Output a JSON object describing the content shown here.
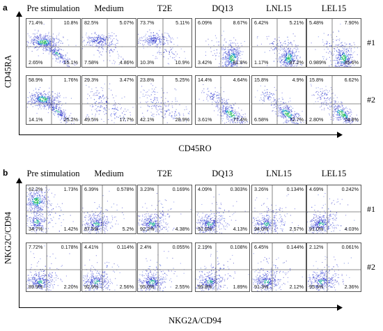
{
  "panels": [
    {
      "letter": "a",
      "columns": [
        "Pre stimulation",
        "Medium",
        "T2E",
        "DQ13",
        "LNL15",
        "LEL15"
      ],
      "y_axis_label": "CD45RA",
      "x_axis_label": "CD45RO",
      "rows": [
        {
          "label": "#1",
          "plots": [
            {
              "tl": "71.4%",
              "tr": "10.8%",
              "bl": "2.65%",
              "br": "15.1%",
              "pattern": "diag"
            },
            {
              "tl": "82.5%",
              "tr": "5.07%",
              "bl": "7.58%",
              "br": "4.86%",
              "pattern": "tl"
            },
            {
              "tl": "73.7%",
              "tr": "5.11%",
              "bl": "10.3%",
              "br": "10.9%",
              "pattern": "tl"
            },
            {
              "tl": "6.09%",
              "tr": "8.67%",
              "bl": "3.42%",
              "br": "81.8%",
              "pattern": "br"
            },
            {
              "tl": "6.42%",
              "tr": "5.21%",
              "bl": "1.17%",
              "br": "87.2%",
              "pattern": "br"
            },
            {
              "tl": "5.48%",
              "tr": "7.90%",
              "bl": "0.989%",
              "br": "85.6%",
              "pattern": "br"
            }
          ]
        },
        {
          "label": "#2",
          "plots": [
            {
              "tl": "58.9%",
              "tr": "1.76%",
              "bl": "14.1%",
              "br": "25.2%",
              "pattern": "diag"
            },
            {
              "tl": "29.3%",
              "tr": "3.47%",
              "bl": "49.5%",
              "br": "17.7%",
              "pattern": "sparse"
            },
            {
              "tl": "23.8%",
              "tr": "5.25%",
              "bl": "42.1%",
              "br": "28.9%",
              "pattern": "sparse"
            },
            {
              "tl": "14.4%",
              "tr": "4.64%",
              "bl": "3.61%",
              "br": "77.4%",
              "pattern": "brdiag"
            },
            {
              "tl": "15.8%",
              "tr": "4.9%",
              "bl": "6.58%",
              "br": "72.7%",
              "pattern": "brdiag"
            },
            {
              "tl": "15.8%",
              "tr": "6.62%",
              "bl": "2.80%",
              "br": "74.8%",
              "pattern": "brdiag"
            }
          ]
        }
      ]
    },
    {
      "letter": "b",
      "columns": [
        "Pre stimulation",
        "Medium",
        "T2E",
        "DQ13",
        "LNL15",
        "LEL15"
      ],
      "y_axis_label": "NKG2C/CD94",
      "x_axis_label": "NKG2A/CD94",
      "rows": [
        {
          "label": "#1",
          "plots": [
            {
              "tl": "62.2%",
              "tr": "1.73%",
              "bl": "34.7%",
              "br": "1.42%",
              "pattern": "left"
            },
            {
              "tl": "6.39%",
              "tr": "0.578%",
              "bl": "87.5%",
              "br": "5.2%",
              "pattern": "bl"
            },
            {
              "tl": "3.23%",
              "tr": "0.169%",
              "bl": "92.2%",
              "br": "4.38%",
              "pattern": "bl"
            },
            {
              "tl": "4.09%",
              "tr": "0.303%",
              "bl": "91.5%",
              "br": "4.13%",
              "pattern": "bl"
            },
            {
              "tl": "3.26%",
              "tr": "0.134%",
              "bl": "94.0%",
              "br": "2.57%",
              "pattern": "bl"
            },
            {
              "tl": "4.69%",
              "tr": "0.242%",
              "bl": "91.0%",
              "br": "4.03%",
              "pattern": "bl"
            }
          ]
        },
        {
          "label": "#2",
          "plots": [
            {
              "tl": "7.72%",
              "tr": "0.178%",
              "bl": "89.9%",
              "br": "2.20%",
              "pattern": "bl"
            },
            {
              "tl": "4.41%",
              "tr": "0.114%",
              "bl": "92.9%",
              "br": "2.56%",
              "pattern": "bl"
            },
            {
              "tl": "2.4%",
              "tr": "0.055%",
              "bl": "95.0%",
              "br": "2.55%",
              "pattern": "bl"
            },
            {
              "tl": "2.19%",
              "tr": "0.108%",
              "bl": "95.8%",
              "br": "1.89%",
              "pattern": "bl"
            },
            {
              "tl": "6.45%",
              "tr": "0.144%",
              "bl": "91.3%",
              "br": "2.12%",
              "pattern": "bl"
            },
            {
              "tl": "2.12%",
              "tr": "0.061%",
              "bl": "95.5%",
              "br": "2.36%",
              "pattern": "bl"
            }
          ]
        }
      ]
    }
  ]
}
